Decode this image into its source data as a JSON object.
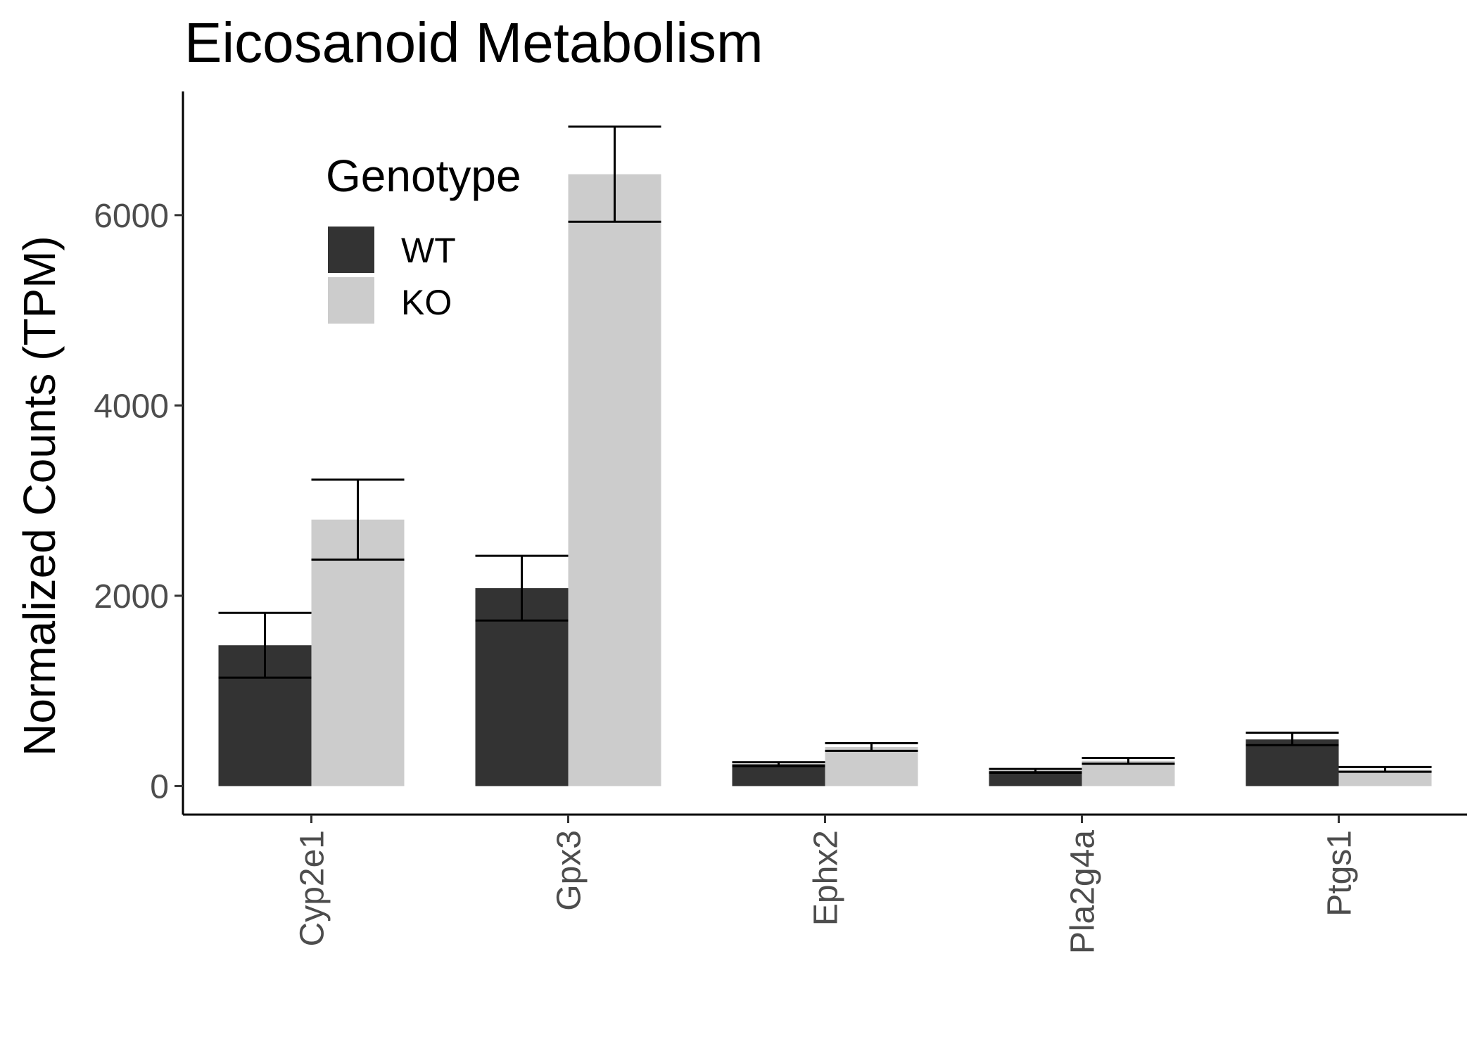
{
  "chart_data": {
    "type": "bar",
    "title": "Eicosanoid Metabolism",
    "xlabel": "",
    "ylabel": "Normalized Counts (TPM)",
    "ylim": [
      -300,
      7300
    ],
    "yticks": [
      0,
      2000,
      4000,
      6000
    ],
    "categories": [
      "Cyp2e1",
      "Gpx3",
      "Ephx2",
      "Pla2g4a",
      "Ptgs1"
    ],
    "series": [
      {
        "name": "WT",
        "color": "#333333",
        "values": [
          1480,
          2080,
          230,
          160,
          490
        ],
        "error_low": [
          1140,
          1740,
          210,
          140,
          430
        ],
        "error_high": [
          1820,
          2420,
          250,
          180,
          560
        ]
      },
      {
        "name": "KO",
        "color": "#cccccc",
        "values": [
          2800,
          6430,
          410,
          265,
          170
        ],
        "error_low": [
          2380,
          5930,
          370,
          235,
          150
        ],
        "error_high": [
          3220,
          6930,
          450,
          295,
          200
        ]
      }
    ],
    "legend": {
      "title": "Genotype",
      "position": "top-left"
    },
    "grid": false
  }
}
